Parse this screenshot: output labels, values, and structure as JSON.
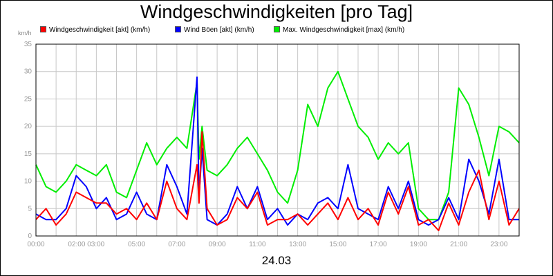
{
  "chart_data": {
    "type": "line",
    "title": "Windgeschwindigkeiten [pro Tag]",
    "ylabel": "km/h",
    "xlabel": "24.03",
    "ylim": [
      0,
      35
    ],
    "xlim": [
      "00:00",
      "24:00"
    ],
    "grid": true,
    "legend_position": "top",
    "y_ticks": [
      "0",
      "5",
      "10",
      "15",
      "20",
      "25",
      "30",
      "35"
    ],
    "x_ticks": [
      "00:00",
      "02:00 03:00",
      "05:00",
      "07:00",
      "09:00",
      "11:00",
      "13:00",
      "15:00",
      "17:00",
      "19:00",
      "21:00",
      "23:00"
    ],
    "series": [
      {
        "name": "Windgeschwindigkeit [akt] (km/h)",
        "color": "#ff0000",
        "x": [
          0.0,
          0.5,
          1.0,
          1.5,
          2.0,
          2.5,
          3.0,
          3.5,
          4.0,
          4.5,
          5.0,
          5.5,
          6.0,
          6.5,
          7.0,
          7.5,
          8.0,
          8.1,
          8.25,
          8.5,
          9.0,
          9.5,
          10.0,
          10.5,
          11.0,
          11.5,
          12.0,
          12.5,
          13.0,
          13.5,
          14.0,
          14.5,
          15.0,
          15.5,
          16.0,
          16.5,
          17.0,
          17.5,
          18.0,
          18.5,
          19.0,
          19.5,
          20.0,
          20.5,
          21.0,
          21.5,
          22.0,
          22.5,
          23.0,
          23.5,
          24.0
        ],
        "values": [
          3,
          5,
          2,
          4,
          8,
          7,
          6,
          6,
          4,
          5,
          3,
          6,
          3,
          10,
          5,
          3,
          13,
          6,
          19,
          5,
          2,
          3,
          7,
          5,
          8,
          2,
          3,
          3,
          4,
          2,
          4,
          6,
          3,
          7,
          3,
          5,
          2,
          8,
          4,
          9,
          2,
          3,
          1,
          6,
          2,
          8,
          12,
          3,
          10,
          2,
          5
        ]
      },
      {
        "name": "Wind Böen [akt] (km/h)",
        "color": "#0000ff",
        "x": [
          0.0,
          0.5,
          1.0,
          1.5,
          2.0,
          2.5,
          3.0,
          3.5,
          4.0,
          4.5,
          5.0,
          5.5,
          6.0,
          6.5,
          7.0,
          7.5,
          8.0,
          8.1,
          8.25,
          8.5,
          9.0,
          9.5,
          10.0,
          10.5,
          11.0,
          11.5,
          12.0,
          12.5,
          13.0,
          13.5,
          14.0,
          14.5,
          15.0,
          15.5,
          16.0,
          16.5,
          17.0,
          17.5,
          18.0,
          18.5,
          19.0,
          19.5,
          20.0,
          20.5,
          21.0,
          21.5,
          22.0,
          22.5,
          23.0,
          23.5,
          24.0
        ],
        "values": [
          4,
          3,
          3,
          5,
          11,
          9,
          5,
          7,
          3,
          4,
          8,
          4,
          3,
          13,
          9,
          4,
          29,
          7,
          16,
          3,
          2,
          4,
          9,
          5,
          9,
          3,
          5,
          2,
          4,
          3,
          6,
          7,
          5,
          13,
          5,
          4,
          3,
          9,
          5,
          10,
          3,
          2,
          3,
          7,
          3,
          14,
          10,
          4,
          14,
          3,
          3
        ]
      },
      {
        "name": "Max. Windgeschwindigkeit [max] (km/h)",
        "color": "#00ee00",
        "x": [
          0.0,
          0.5,
          1.0,
          1.5,
          2.0,
          2.5,
          3.0,
          3.5,
          4.0,
          4.5,
          5.0,
          5.5,
          6.0,
          6.5,
          7.0,
          7.5,
          8.0,
          8.1,
          8.25,
          8.5,
          9.0,
          9.5,
          10.0,
          10.5,
          11.0,
          11.5,
          12.0,
          12.5,
          13.0,
          13.5,
          14.0,
          14.5,
          15.0,
          15.5,
          16.0,
          16.5,
          17.0,
          17.5,
          18.0,
          18.5,
          19.0,
          19.5,
          20.0,
          20.5,
          21.0,
          21.5,
          22.0,
          22.5,
          23.0,
          23.5,
          24.0
        ],
        "values": [
          13,
          9,
          8,
          10,
          13,
          12,
          11,
          13,
          8,
          7,
          12,
          17,
          13,
          16,
          18,
          16,
          28,
          14,
          20,
          12,
          11,
          13,
          16,
          18,
          15,
          12,
          8,
          6,
          12,
          24,
          20,
          27,
          30,
          25,
          20,
          18,
          14,
          17,
          15,
          17,
          5,
          3,
          3,
          8,
          27,
          24,
          18,
          11,
          20,
          19,
          17
        ]
      }
    ]
  }
}
